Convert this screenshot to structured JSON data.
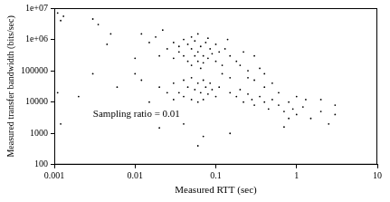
{
  "chart_data": {
    "type": "scatter",
    "x_label": "Measured RTT (sec)",
    "y_label": "Measured transfer bandwidth (bits/sec)",
    "annotation": "Sampling ratio = 0.01",
    "color": "#000000",
    "log": true,
    "grid": false,
    "xlim": [
      0.001,
      10
    ],
    "xticks": [
      0.001,
      0.01,
      0.1,
      1,
      10
    ],
    "ylim": [
      100,
      10000000
    ],
    "yticks": [
      100,
      1000,
      10000,
      100000,
      {
        "value": 1000000,
        "label": "1e+06"
      },
      {
        "value": 10000000,
        "label": "1e+07"
      }
    ],
    "x": [
      0.0011,
      0.0012,
      0.0013,
      0.003,
      0.0035,
      0.005,
      0.0045,
      0.0011,
      0.002,
      0.0012,
      0.003,
      0.006,
      0.03,
      0.035,
      0.04,
      0.045,
      0.05,
      0.055,
      0.06,
      0.065,
      0.07,
      0.075,
      0.08,
      0.085,
      0.09,
      0.1,
      0.11,
      0.12,
      0.04,
      0.045,
      0.05,
      0.055,
      0.06,
      0.065,
      0.07,
      0.035,
      0.03,
      0.025,
      0.02,
      0.018,
      0.022,
      0.015,
      0.012,
      0.05,
      0.06,
      0.08,
      0.1,
      0.13,
      0.15,
      0.18,
      0.2,
      0.25,
      0.14,
      0.3,
      0.22,
      0.35,
      0.4,
      0.04,
      0.045,
      0.05,
      0.055,
      0.06,
      0.065,
      0.07,
      0.075,
      0.08,
      0.085,
      0.09,
      0.1,
      0.11,
      0.035,
      0.04,
      0.05,
      0.06,
      0.07,
      0.03,
      0.03,
      0.025,
      0.02,
      0.015,
      0.012,
      0.15,
      0.18,
      0.2,
      0.22,
      0.25,
      0.28,
      0.3,
      0.35,
      0.4,
      0.45,
      0.5,
      0.6,
      0.7,
      0.8,
      0.9,
      1,
      1.2,
      1.5,
      2,
      2.5,
      3,
      0.6,
      0.4,
      1,
      0.3,
      0.5,
      0.25,
      0.8,
      1.3,
      0.15,
      0.12,
      0.7,
      0.06,
      0.07,
      0.15,
      2,
      3,
      0.04,
      0.02,
      0.01,
      0.01
    ],
    "values": [
      7000000,
      4000000,
      5500000,
      4500000,
      3000000,
      1500000,
      700000,
      20000,
      15000,
      2000,
      80000,
      30000,
      800000,
      600000,
      1000000,
      700000,
      500000,
      900000,
      400000,
      600000,
      300000,
      800000,
      250000,
      500000,
      350000,
      200000,
      400000,
      150000,
      300000,
      200000,
      150000,
      300000,
      200000,
      120000,
      180000,
      400000,
      250000,
      500000,
      300000,
      1200000,
      2000000,
      800000,
      1500000,
      1200000,
      1500000,
      1100000,
      700000,
      500000,
      300000,
      200000,
      150000,
      100000,
      1000000,
      300000,
      400000,
      120000,
      80000,
      50000,
      30000,
      60000,
      25000,
      40000,
      20000,
      50000,
      30000,
      18000,
      40000,
      25000,
      15000,
      30000,
      20000,
      15000,
      12000,
      10000,
      12000,
      40000,
      12000,
      20000,
      30000,
      10000,
      50000,
      20000,
      15000,
      25000,
      10000,
      18000,
      12000,
      8000,
      15000,
      10000,
      6000,
      12000,
      8000,
      5000,
      10000,
      6000,
      4000,
      7000,
      3000,
      5000,
      2000,
      4000,
      20000,
      30000,
      15000,
      50000,
      40000,
      60000,
      3000,
      12000,
      60000,
      80000,
      1600,
      400,
      800,
      1000,
      12000,
      8000,
      2000,
      1500,
      80000,
      250000
    ]
  }
}
